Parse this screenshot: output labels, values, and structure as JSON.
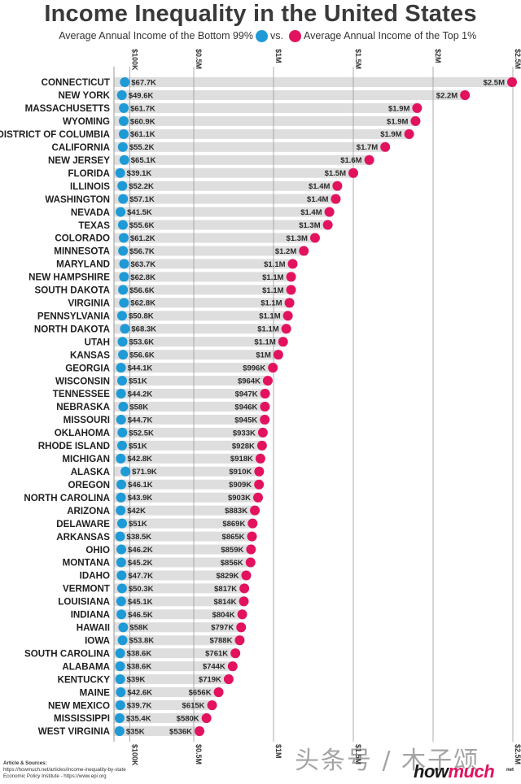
{
  "title": "Income Inequality in the United States",
  "subtitle": {
    "left": "Average Annual Income of the Bottom 99%",
    "vs": "vs.",
    "right": "Average Annual Income of the Top 1%"
  },
  "colors": {
    "bottom": "#1e9ad6",
    "top": "#e2125f",
    "bar": "#dedede",
    "axis": "#9a9a9a"
  },
  "chart_data": {
    "type": "dumbbell",
    "title": "Income Inequality in the United States",
    "xlim": [
      0,
      2500000
    ],
    "ticks": [
      {
        "value": 100000,
        "label": "$100K"
      },
      {
        "value": 500000,
        "label": "$0.5M"
      },
      {
        "value": 1000000,
        "label": "$1M"
      },
      {
        "value": 1500000,
        "label": "$1.5M"
      },
      {
        "value": 2000000,
        "label": "$2M"
      },
      {
        "value": 2500000,
        "label": "$2.5M"
      }
    ],
    "bottom_ticks": [
      {
        "value": 100000,
        "label": "$100K"
      },
      {
        "value": 500000,
        "label": "$0.5M"
      },
      {
        "value": 1000000,
        "label": "$1M"
      },
      {
        "value": 1500000,
        "label": "$1.5M"
      },
      {
        "value": 2500000,
        "label": "$2.5M"
      }
    ],
    "series": [
      {
        "name": "Average Annual Income of the Bottom 99%",
        "key": "bottom"
      },
      {
        "name": "Average Annual Income of the Top 1%",
        "key": "top"
      }
    ],
    "rows": [
      {
        "state": "CONNECTICUT",
        "bottom": 67700,
        "bottom_label": "$67.7K",
        "top": 2500000,
        "top_label": "$2.5M"
      },
      {
        "state": "NEW YORK",
        "bottom": 49600,
        "bottom_label": "$49.6K",
        "top": 2200000,
        "top_label": "$2.2M"
      },
      {
        "state": "MASSACHUSETTS",
        "bottom": 61700,
        "bottom_label": "$61.7K",
        "top": 1900000,
        "top_label": "$1.9M"
      },
      {
        "state": "WYOMING",
        "bottom": 60900,
        "bottom_label": "$60.9K",
        "top": 1890000,
        "top_label": "$1.9M"
      },
      {
        "state": "DISTRICT OF COLUMBIA",
        "bottom": 61100,
        "bottom_label": "$61.1K",
        "top": 1850000,
        "top_label": "$1.9M"
      },
      {
        "state": "CALIFORNIA",
        "bottom": 55200,
        "bottom_label": "$55.2K",
        "top": 1700000,
        "top_label": "$1.7M"
      },
      {
        "state": "NEW JERSEY",
        "bottom": 65100,
        "bottom_label": "$65.1K",
        "top": 1600000,
        "top_label": "$1.6M"
      },
      {
        "state": "FLORIDA",
        "bottom": 39100,
        "bottom_label": "$39.1K",
        "top": 1500000,
        "top_label": "$1.5M"
      },
      {
        "state": "ILLINOIS",
        "bottom": 52200,
        "bottom_label": "$52.2K",
        "top": 1400000,
        "top_label": "$1.4M"
      },
      {
        "state": "WASHINGTON",
        "bottom": 57100,
        "bottom_label": "$57.1K",
        "top": 1390000,
        "top_label": "$1.4M"
      },
      {
        "state": "NEVADA",
        "bottom": 41500,
        "bottom_label": "$41.5K",
        "top": 1350000,
        "top_label": "$1.4M"
      },
      {
        "state": "TEXAS",
        "bottom": 55600,
        "bottom_label": "$55.6K",
        "top": 1340000,
        "top_label": "$1.3M"
      },
      {
        "state": "COLORADO",
        "bottom": 61200,
        "bottom_label": "$61.2K",
        "top": 1260000,
        "top_label": "$1.3M"
      },
      {
        "state": "MINNESOTA",
        "bottom": 56700,
        "bottom_label": "$56.7K",
        "top": 1190000,
        "top_label": "$1.2M"
      },
      {
        "state": "MARYLAND",
        "bottom": 63700,
        "bottom_label": "$63.7K",
        "top": 1120000,
        "top_label": "$1.1M"
      },
      {
        "state": "NEW HAMPSHIRE",
        "bottom": 62800,
        "bottom_label": "$62.8K",
        "top": 1110000,
        "top_label": "$1.1M"
      },
      {
        "state": "SOUTH DAKOTA",
        "bottom": 56600,
        "bottom_label": "$56.6K",
        "top": 1110000,
        "top_label": "$1.1M"
      },
      {
        "state": "VIRGINIA",
        "bottom": 62800,
        "bottom_label": "$62.8K",
        "top": 1100000,
        "top_label": "$1.1M"
      },
      {
        "state": "PENNSYLVANIA",
        "bottom": 50800,
        "bottom_label": "$50.8K",
        "top": 1090000,
        "top_label": "$1.1M"
      },
      {
        "state": "NORTH DAKOTA",
        "bottom": 68300,
        "bottom_label": "$68.3K",
        "top": 1080000,
        "top_label": "$1.1M"
      },
      {
        "state": "UTAH",
        "bottom": 53600,
        "bottom_label": "$53.6K",
        "top": 1060000,
        "top_label": "$1.1M"
      },
      {
        "state": "KANSAS",
        "bottom": 56600,
        "bottom_label": "$56.6K",
        "top": 1030000,
        "top_label": "$1M"
      },
      {
        "state": "GEORGIA",
        "bottom": 44100,
        "bottom_label": "$44.1K",
        "top": 996000,
        "top_label": "$996K"
      },
      {
        "state": "WISCONSIN",
        "bottom": 51000,
        "bottom_label": "$51K",
        "top": 964000,
        "top_label": "$964K"
      },
      {
        "state": "TENNESSEE",
        "bottom": 44200,
        "bottom_label": "$44.2K",
        "top": 947000,
        "top_label": "$947K"
      },
      {
        "state": "NEBRASKA",
        "bottom": 58000,
        "bottom_label": "$58K",
        "top": 946000,
        "top_label": "$946K"
      },
      {
        "state": "MISSOURI",
        "bottom": 44700,
        "bottom_label": "$44.7K",
        "top": 945000,
        "top_label": "$945K"
      },
      {
        "state": "OKLAHOMA",
        "bottom": 52500,
        "bottom_label": "$52.5K",
        "top": 933000,
        "top_label": "$933K"
      },
      {
        "state": "RHODE ISLAND",
        "bottom": 51000,
        "bottom_label": "$51K",
        "top": 928000,
        "top_label": "$928K"
      },
      {
        "state": "MICHIGAN",
        "bottom": 42800,
        "bottom_label": "$42.8K",
        "top": 918000,
        "top_label": "$918K"
      },
      {
        "state": "ALASKA",
        "bottom": 71900,
        "bottom_label": "$71.9K",
        "top": 910000,
        "top_label": "$910K"
      },
      {
        "state": "OREGON",
        "bottom": 46100,
        "bottom_label": "$46.1K",
        "top": 909000,
        "top_label": "$909K"
      },
      {
        "state": "NORTH CAROLINA",
        "bottom": 43900,
        "bottom_label": "$43.9K",
        "top": 903000,
        "top_label": "$903K"
      },
      {
        "state": "ARIZONA",
        "bottom": 42000,
        "bottom_label": "$42K",
        "top": 883000,
        "top_label": "$883K"
      },
      {
        "state": "DELAWARE",
        "bottom": 51000,
        "bottom_label": "$51K",
        "top": 869000,
        "top_label": "$869K"
      },
      {
        "state": "ARKANSAS",
        "bottom": 38500,
        "bottom_label": "$38.5K",
        "top": 865000,
        "top_label": "$865K"
      },
      {
        "state": "OHIO",
        "bottom": 46200,
        "bottom_label": "$46.2K",
        "top": 859000,
        "top_label": "$859K"
      },
      {
        "state": "MONTANA",
        "bottom": 45200,
        "bottom_label": "$45.2K",
        "top": 856000,
        "top_label": "$856K"
      },
      {
        "state": "IDAHO",
        "bottom": 47700,
        "bottom_label": "$47.7K",
        "top": 829000,
        "top_label": "$829K"
      },
      {
        "state": "VERMONT",
        "bottom": 50300,
        "bottom_label": "$50.3K",
        "top": 817000,
        "top_label": "$817K"
      },
      {
        "state": "LOUISIANA",
        "bottom": 45100,
        "bottom_label": "$45.1K",
        "top": 814000,
        "top_label": "$814K"
      },
      {
        "state": "INDIANA",
        "bottom": 46500,
        "bottom_label": "$46.5K",
        "top": 804000,
        "top_label": "$804K"
      },
      {
        "state": "HAWAII",
        "bottom": 58000,
        "bottom_label": "$58K",
        "top": 797000,
        "top_label": "$797K"
      },
      {
        "state": "IOWA",
        "bottom": 53800,
        "bottom_label": "$53.8K",
        "top": 788000,
        "top_label": "$788K"
      },
      {
        "state": "SOUTH CAROLINA",
        "bottom": 38600,
        "bottom_label": "$38.6K",
        "top": 761000,
        "top_label": "$761K"
      },
      {
        "state": "ALABAMA",
        "bottom": 38600,
        "bottom_label": "$38.6K",
        "top": 744000,
        "top_label": "$744K"
      },
      {
        "state": "KENTUCKY",
        "bottom": 39000,
        "bottom_label": "$39K",
        "top": 719000,
        "top_label": "$719K"
      },
      {
        "state": "MAINE",
        "bottom": 42600,
        "bottom_label": "$42.6K",
        "top": 656000,
        "top_label": "$656K"
      },
      {
        "state": "NEW MEXICO",
        "bottom": 39700,
        "bottom_label": "$39.7K",
        "top": 615000,
        "top_label": "$615K"
      },
      {
        "state": "MISSISSIPPI",
        "bottom": 35400,
        "bottom_label": "$35.4K",
        "top": 580000,
        "top_label": "$580K"
      },
      {
        "state": "WEST VIRGINIA",
        "bottom": 35000,
        "bottom_label": "$35K",
        "top": 536000,
        "top_label": "$536K"
      }
    ]
  },
  "footer": {
    "heading": "Article & Sources:",
    "line1": "https://howmuch.net/articles/income-inequality-by-state",
    "line2": "Economic Policy Institute - https://www.epi.org"
  },
  "brand": {
    "how": "how",
    "much": "much",
    "net": "net"
  },
  "watermark": "头条号 / 木子颂"
}
